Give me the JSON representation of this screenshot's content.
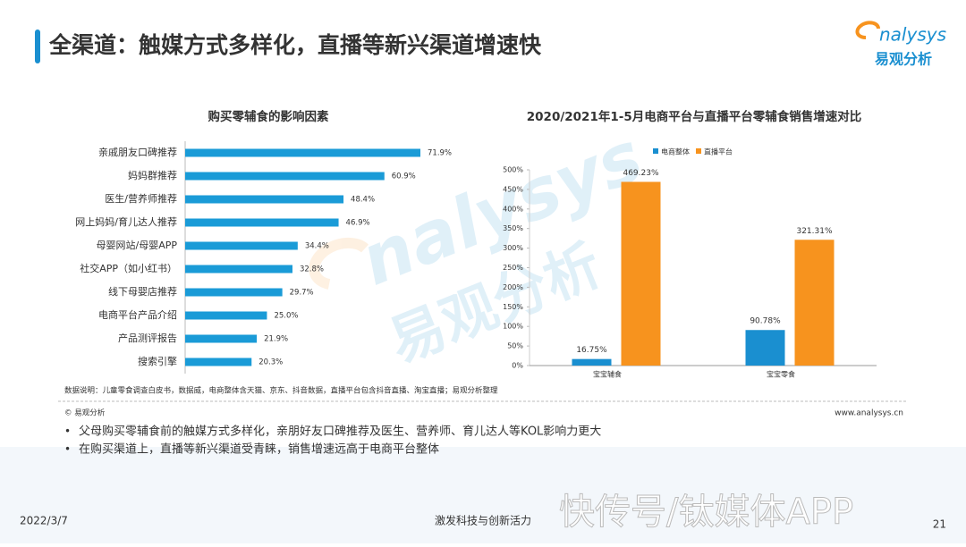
{
  "header": {
    "title": "全渠道：触媒方式多样化，直播等新兴渠道增速快",
    "logo_en": "nalysys",
    "logo_cn": "易观分析"
  },
  "watermark": {
    "en": "nalysys",
    "cn": "易观分析",
    "overlay": "快传号/钛媒体APP"
  },
  "chart_data": [
    {
      "type": "bar",
      "orientation": "horizontal",
      "title": "购买零辅食的影响因素",
      "color": "#1a9bd7",
      "categories": [
        "亲戚朋友口碑推荐",
        "妈妈群推荐",
        "医生/营养师推荐",
        "网上妈妈/育儿达人推荐",
        "母婴网站/母婴APP",
        "社交APP（如小红书）",
        "线下母婴店推荐",
        "电商平台产品介绍",
        "产品测评报告",
        "搜索引擎"
      ],
      "values": [
        71.9,
        60.9,
        48.4,
        46.9,
        34.4,
        32.8,
        29.7,
        25.0,
        21.9,
        20.3
      ],
      "value_labels": [
        "71.9%",
        "60.9%",
        "48.4%",
        "46.9%",
        "34.4%",
        "32.8%",
        "29.7%",
        "25.0%",
        "21.9%",
        "20.3%"
      ]
    },
    {
      "type": "bar",
      "title": "2020/2021年1-5月电商平台与直播平台零辅食销售增速对比",
      "categories": [
        "宝宝辅食",
        "宝宝零食"
      ],
      "series": [
        {
          "name": "电商整体",
          "color": "#1a8fd0",
          "values": [
            16.75,
            90.78
          ],
          "value_labels": [
            "16.75%",
            "90.78%"
          ]
        },
        {
          "name": "直播平台",
          "color": "#f7931e",
          "values": [
            469.23,
            321.31
          ],
          "value_labels": [
            "469.23%",
            "321.31%"
          ]
        }
      ],
      "ylim": [
        0,
        500
      ],
      "yticks": [
        {
          "value": 0,
          "label": "0%"
        },
        {
          "value": 50,
          "label": "50%"
        },
        {
          "value": 100,
          "label": "100%"
        },
        {
          "value": 150,
          "label": "150%"
        },
        {
          "value": 200,
          "label": "200%"
        },
        {
          "value": 250,
          "label": "250%"
        },
        {
          "value": 300,
          "label": "300%"
        },
        {
          "value": 350,
          "label": "350%"
        },
        {
          "value": 400,
          "label": "400%"
        },
        {
          "value": 450,
          "label": "450%"
        },
        {
          "value": 500,
          "label": "500%"
        }
      ],
      "legend": "top",
      "grid": false
    }
  ],
  "source": "数据说明：儿童零食调查白皮书，数据威，电商整体含天猫、京东、抖音数据，直播平台包含抖音直播、淘宝直播；易观分析整理",
  "copyright": "© 易观分析",
  "url": "www.analysys.cn",
  "bullets": [
    "父母购买零辅食前的触媒方式多样化，亲朋好友口碑推荐及医生、营养师、育儿达人等KOL影响力更大",
    "在购买渠道上，直播等新兴渠道受青睐，销售增速远高于电商平台整体"
  ],
  "footer": {
    "date": "2022/3/7",
    "tagline": "激发科技与创新活力",
    "page": "21"
  }
}
